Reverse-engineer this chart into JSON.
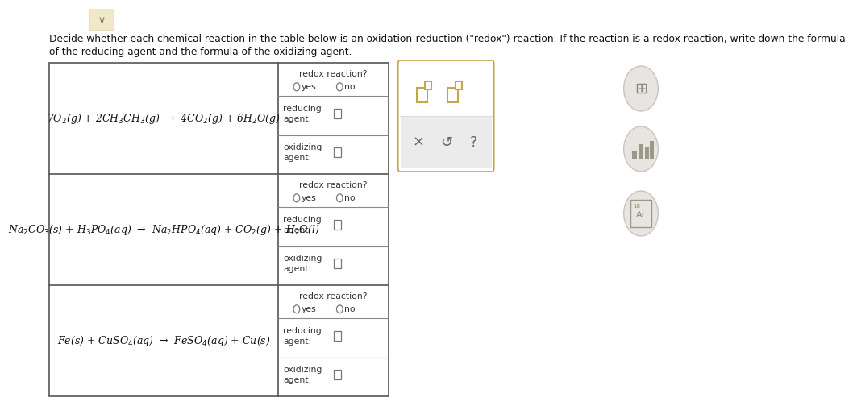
{
  "page_bg": "#ffffff",
  "title_text_line1": "Decide whether each chemical reaction in the table below is an oxidation-reduction (\"redox\") reaction. If the reaction is a redox reaction, write down the formula",
  "title_text_line2": "of the reducing agent and the formula of the oxidizing agent.",
  "title_fontsize": 8.8,
  "reactions": [
    "7O$_2$(g) + 2CH$_3$CH$_3$(g)  →  4CO$_2$(g) + 6H$_2$O(g)",
    "Na$_2$CO$_3$(s) + H$_3$PO$_4$(aq)  →  Na$_2$HPO$_4$(aq) + CO$_2$(g) + H$_2$O(l)",
    "Fe(s) + CuSO$_4$(aq)  →  FeSO$_4$(aq) + Cu(s)"
  ],
  "text_color": "#111111",
  "label_color": "#333333",
  "table_border": "#555555",
  "sub_border": "#888888",
  "icon_gold": "#c8a44a",
  "icon_bg": "#f0ede6",
  "widget_panel_bg": "#f5f2ed",
  "widget_panel_border": "#c8a44a",
  "button_area_bg": "#ebebeb",
  "right_circle_bg": "#e8e5e0",
  "right_circle_border": "#c8c5c0",
  "chevron_bg": "#f0e8c8",
  "chevron_color": "#8a7a40"
}
